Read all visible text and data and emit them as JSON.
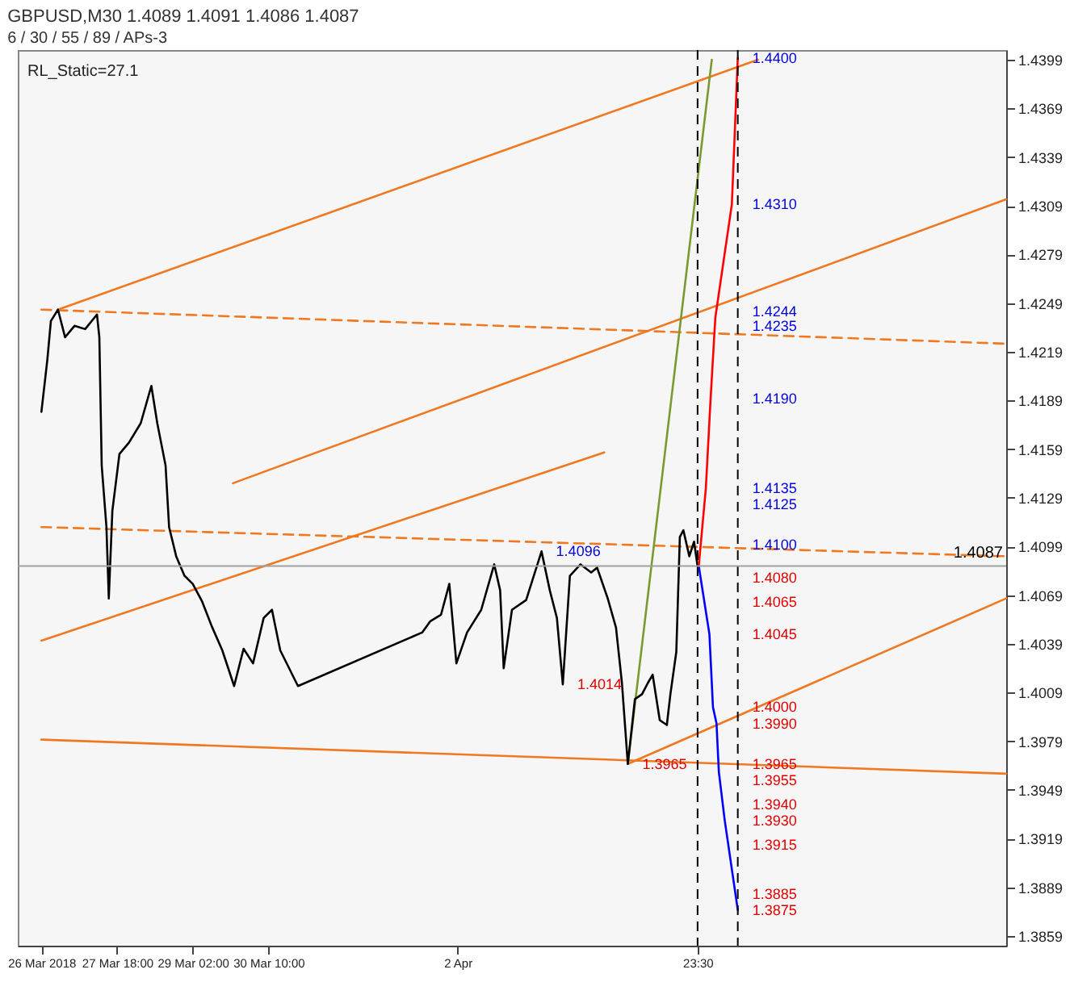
{
  "chart_data": {
    "type": "line",
    "title": "GBPUSD,M30 1.4089 1.4091 1.4086 1.4087",
    "subtitle": "6 / 30 / 55 / 89 / APs-3",
    "annotations": [
      "RL_Static=27.1",
      {
        "text": "1.4400",
        "x": "2018-04-07T16:30",
        "y": 1.44
      },
      {
        "text": "1.4310",
        "x": "2018-04-07T16:30",
        "y": 1.431
      },
      {
        "text": "1.4244",
        "x": "2018-04-07T16:30",
        "y": 1.4244
      },
      {
        "text": "1.4235",
        "x": "2018-04-07T16:30",
        "y": 1.4235
      },
      {
        "text": "1.4190",
        "x": "2018-04-07T16:30",
        "y": 1.419
      },
      {
        "text": "1.4135",
        "x": "2018-04-07T16:30",
        "y": 1.4135
      },
      {
        "text": "1.4125",
        "x": "2018-04-07T16:30",
        "y": 1.4125
      },
      {
        "text": "1.4100",
        "x": "2018-04-07T16:30",
        "y": 1.41
      },
      {
        "text": "1.4080",
        "x": "2018-04-07T16:30",
        "y": 1.408
      },
      {
        "text": "1.4065",
        "x": "2018-04-07T16:30",
        "y": 1.4065
      },
      {
        "text": "1.4045",
        "x": "2018-04-07T16:30",
        "y": 1.4045
      },
      {
        "text": "1.4000",
        "x": "2018-04-07T16:30",
        "y": 1.4
      },
      {
        "text": "1.3990",
        "x": "2018-04-07T16:30",
        "y": 1.399
      },
      {
        "text": "1.3965",
        "x": "2018-04-07T16:30",
        "y": 1.3965
      },
      {
        "text": "1.3955",
        "x": "2018-04-07T16:30",
        "y": 1.3955
      },
      {
        "text": "1.3940",
        "x": "2018-04-07T16:30",
        "y": 1.394
      },
      {
        "text": "1.3930",
        "x": "2018-04-07T16:30",
        "y": 1.393
      },
      {
        "text": "1.3915",
        "x": "2018-04-07T16:30",
        "y": 1.3915
      },
      {
        "text": "1.3885",
        "x": "2018-04-07T16:30",
        "y": 1.3885
      },
      {
        "text": "1.3875",
        "x": "2018-04-07T16:30",
        "y": 1.3875
      },
      {
        "text": "1.4096",
        "x": "2018-04-04T05:30",
        "y": 1.4096
      },
      {
        "text": "1.4014",
        "x": "2018-04-04T14:30",
        "y": 1.4014
      },
      {
        "text": "1.3965",
        "x": "2018-04-05T18:00",
        "y": 1.3965
      }
    ],
    "xlim": [
      "2018-03-26T00:00",
      "2018-04-12T10:00"
    ],
    "ylim": [
      1.3853,
      1.4405
    ],
    "xticks": [
      {
        "value": "2018-03-26T10:00",
        "label": "26 Mar 2018"
      },
      {
        "value": "2018-03-27T18:00",
        "label": "27 Mar 18:00"
      },
      {
        "value": "2018-03-29T02:00",
        "label": "29 Mar 02:00"
      },
      {
        "value": "2018-03-30T10:00",
        "label": "30 Mar 10:00"
      },
      {
        "value": "2018-04-02T18:00",
        "label": "2 Apr"
      },
      {
        "value": "2018-04-06T23:30",
        "label": "23:30"
      }
    ],
    "yticks": [
      1.3859,
      1.3889,
      1.3919,
      1.3949,
      1.3979,
      1.4009,
      1.4039,
      1.4069,
      1.4099,
      1.4129,
      1.4159,
      1.4189,
      1.4219,
      1.4249,
      1.4279,
      1.4309,
      1.4339,
      1.4369,
      1.4399
    ],
    "ref_lines": [
      {
        "axis": "x",
        "value": "2018-04-06T23:30",
        "color": "#000000",
        "line_style": "dashed"
      },
      {
        "axis": "x",
        "value": "2018-04-07T16:30",
        "color": "#000000",
        "line_style": "dashed"
      },
      {
        "axis": "y",
        "value": 1.4087,
        "label": "1.4087",
        "color": "#a0a0a0"
      }
    ],
    "series": [
      {
        "color": "#f07820",
        "x": [
          "2018-03-26T17:00",
          "2018-04-08T01:00"
        ],
        "values": [
          1.4245,
          1.4399
        ]
      },
      {
        "color": "#f07820",
        "x": [
          "2018-03-29T19:00",
          "2018-04-12T10:00"
        ],
        "values": [
          1.4138,
          1.4313
        ]
      },
      {
        "color": "#f07820",
        "x": [
          "2018-03-26T10:00",
          "2018-04-05T08:00"
        ],
        "values": [
          1.4041,
          1.4157
        ]
      },
      {
        "color": "#f07820",
        "x": [
          "2018-04-05T18:00",
          "2018-04-12T10:00"
        ],
        "values": [
          1.3965,
          1.4067
        ]
      },
      {
        "color": "#f07820",
        "x": [
          "2018-03-26T10:00",
          "2018-04-12T10:00"
        ],
        "values": [
          1.398,
          1.3959
        ]
      },
      {
        "color": "#f07820",
        "line_style": "dashed",
        "x": [
          "2018-03-26T10:00",
          "2018-04-12T10:00"
        ],
        "values": [
          1.4245,
          1.4224
        ]
      },
      {
        "color": "#f07820",
        "line_style": "dashed",
        "x": [
          "2018-03-26T10:00",
          "2018-04-12T10:00"
        ],
        "values": [
          1.4111,
          1.4093
        ]
      },
      {
        "color": "#7a9a30",
        "x": [
          "2018-04-05T18:00",
          "2018-04-07T05:30"
        ],
        "values": [
          1.3965,
          1.4399
        ]
      },
      {
        "color": "#000000",
        "x": [
          "2018-03-26T10:00",
          "2018-03-26T12:30",
          "2018-03-26T14:00",
          "2018-03-26T17:00",
          "2018-03-26T20:00",
          "2018-03-27T00:00",
          "2018-03-27T04:30",
          "2018-03-27T09:30",
          "2018-03-27T10:30",
          "2018-03-27T11:30",
          "2018-03-27T13:30",
          "2018-03-27T14:30",
          "2018-03-27T16:00",
          "2018-03-27T19:00",
          "2018-03-27T23:00",
          "2018-03-28T04:00",
          "2018-03-28T08:30",
          "2018-03-28T11:00",
          "2018-03-28T14:30",
          "2018-03-28T16:00",
          "2018-03-28T19:00",
          "2018-03-28T22:30",
          "2018-03-29T02:00",
          "2018-03-29T06:00",
          "2018-03-29T10:00",
          "2018-03-29T14:30",
          "2018-03-29T19:30",
          "2018-03-29T23:30",
          "2018-03-30T03:30",
          "2018-03-30T08:00",
          "2018-03-30T11:30",
          "2018-03-30T15:00",
          "2018-03-30T22:30",
          "2018-04-02T03:00",
          "2018-04-02T06:30",
          "2018-04-02T11:00",
          "2018-04-02T14:30",
          "2018-04-02T17:30",
          "2018-04-02T22:00",
          "2018-04-03T04:00",
          "2018-04-03T09:30",
          "2018-04-03T12:00",
          "2018-04-03T13:30",
          "2018-04-03T17:00",
          "2018-04-03T23:00",
          "2018-04-04T05:30",
          "2018-04-04T09:00",
          "2018-04-04T12:00",
          "2018-04-04T14:30",
          "2018-04-04T17:30",
          "2018-04-04T22:00",
          "2018-04-05T02:30",
          "2018-04-05T05:00",
          "2018-04-05T09:30",
          "2018-04-05T13:00",
          "2018-04-05T15:30",
          "2018-04-05T18:00",
          "2018-04-05T21:00",
          "2018-04-06T00:00",
          "2018-04-06T02:30",
          "2018-04-06T04:30",
          "2018-04-06T07:30",
          "2018-04-06T10:30",
          "2018-04-06T12:00",
          "2018-04-06T14:30",
          "2018-04-06T16:00",
          "2018-04-06T17:30",
          "2018-04-06T20:00",
          "2018-04-06T22:00",
          "2018-04-06T23:30"
        ],
        "values": [
          1.4182,
          1.4214,
          1.4238,
          1.4245,
          1.4228,
          1.4235,
          1.4233,
          1.4242,
          1.4228,
          1.4149,
          1.4111,
          1.4067,
          1.4121,
          1.4156,
          1.4163,
          1.4175,
          1.4198,
          1.4175,
          1.4149,
          1.4111,
          1.4093,
          1.4081,
          1.4076,
          1.4065,
          1.405,
          1.4035,
          1.4013,
          1.4036,
          1.4027,
          1.4055,
          1.406,
          1.4035,
          1.4013,
          1.4046,
          1.4053,
          1.4057,
          1.4076,
          1.4027,
          1.4046,
          1.406,
          1.4088,
          1.4072,
          1.4024,
          1.406,
          1.4066,
          1.4096,
          1.4072,
          1.4055,
          1.4014,
          1.4081,
          1.4088,
          1.4083,
          1.4086,
          1.4067,
          1.4049,
          1.4015,
          1.3965,
          1.4005,
          1.4008,
          1.4015,
          1.402,
          1.3992,
          1.3989,
          1.4008,
          1.4034,
          1.4105,
          1.4109,
          1.4093,
          1.4102,
          1.4087
        ]
      },
      {
        "color": "#ff0000",
        "x": [
          "2018-04-07T00:00",
          "2018-04-07T03:00",
          "2018-04-07T05:00",
          "2018-04-07T07:00",
          "2018-04-07T14:00",
          "2018-04-07T16:30"
        ],
        "values": [
          1.4087,
          1.4135,
          1.419,
          1.424,
          1.431,
          1.44
        ]
      },
      {
        "color": "#0000ff",
        "x": [
          "2018-04-07T00:00",
          "2018-04-07T04:30",
          "2018-04-07T06:00",
          "2018-04-07T07:30",
          "2018-04-07T08:30",
          "2018-04-07T11:00",
          "2018-04-07T16:30"
        ],
        "values": [
          1.4087,
          1.4045,
          1.4,
          1.399,
          1.396,
          1.393,
          1.3875
        ]
      }
    ]
  }
}
